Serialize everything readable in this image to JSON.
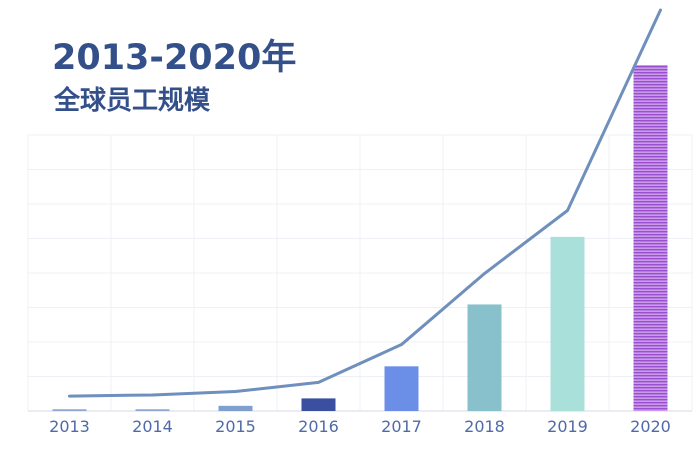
{
  "chart_data": {
    "type": "bar",
    "title": "2013-2020年",
    "subtitle": "全球员工规模",
    "categories": [
      "2013",
      "2014",
      "2015",
      "2016",
      "2017",
      "2018",
      "2019",
      "2020"
    ],
    "values": [
      1.5,
      1.5,
      4.5,
      11,
      39,
      93,
      152,
      302
    ],
    "line_values": [
      13,
      14,
      17,
      25,
      58,
      120,
      175,
      350
    ],
    "ylim": [
      0,
      350
    ],
    "grid": true,
    "bar_colors": [
      "#8fa6cf",
      "#8fa6cf",
      "#7f9fcf",
      "#3a4fa0",
      "#6b8fe6",
      "#88c1cc",
      "#a9e0da",
      "#a45fd0"
    ],
    "line_color": "#6f8fbd"
  }
}
